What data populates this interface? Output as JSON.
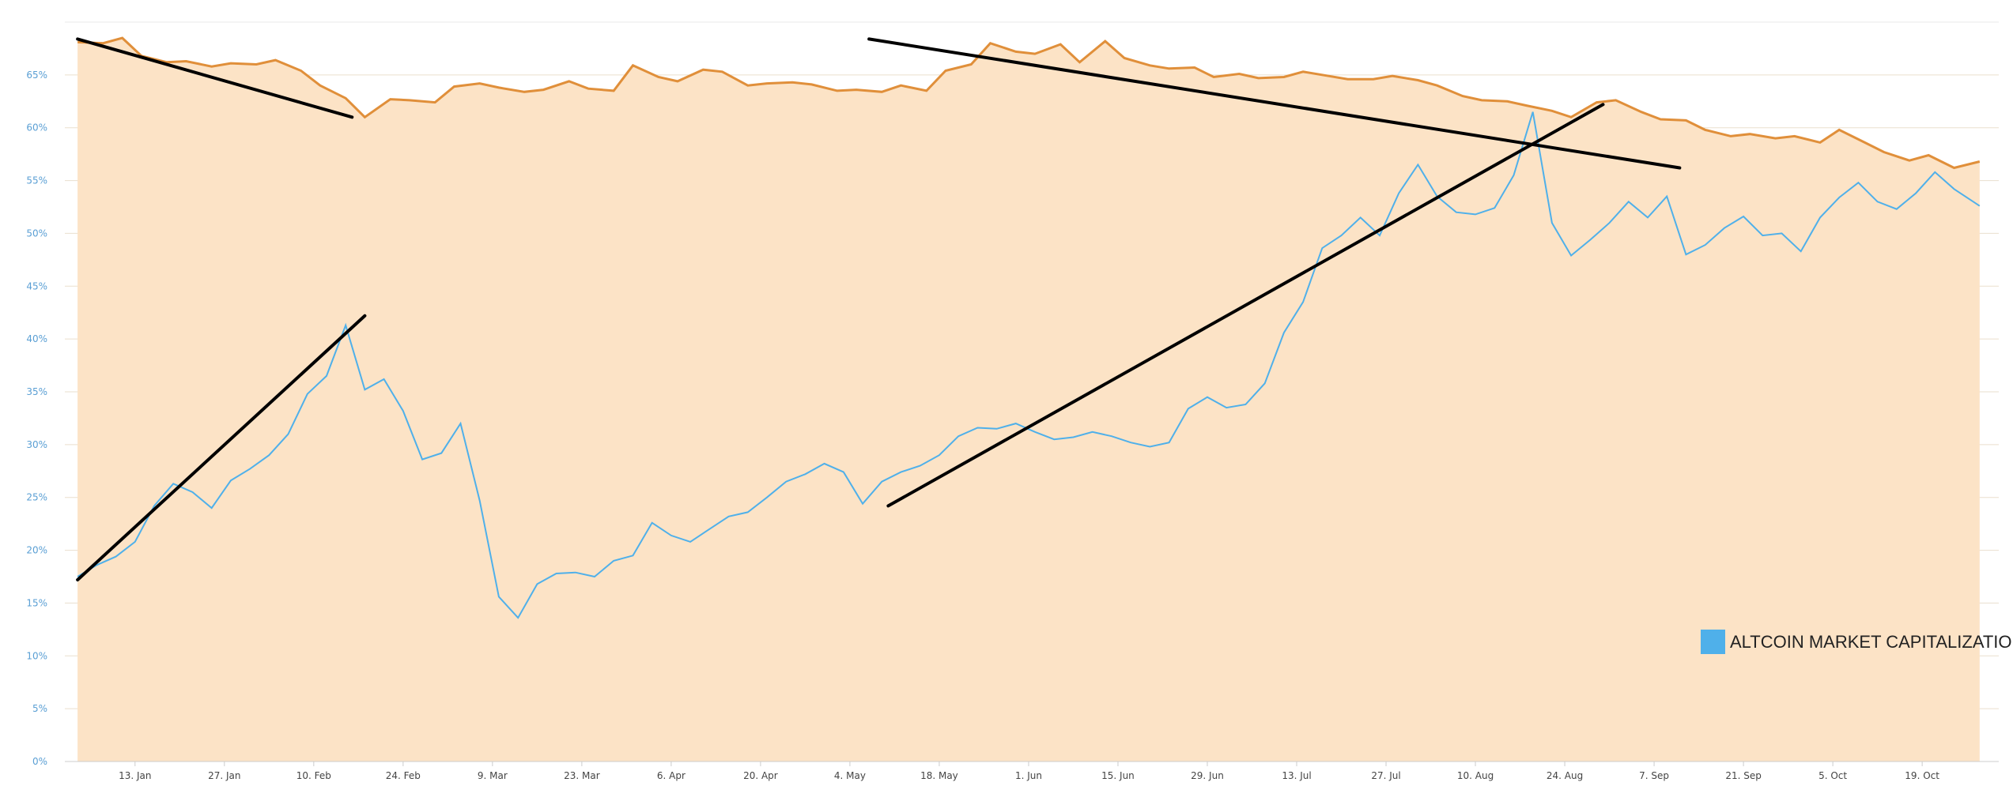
{
  "chart_data": {
    "type": "area",
    "title": "",
    "xlabel": "",
    "ylabel": "",
    "ylim": [
      0,
      70
    ],
    "grid": true,
    "legend_placement": "bottom-right",
    "y_ticks": [
      "0%",
      "5%",
      "10%",
      "15%",
      "20%",
      "25%",
      "30%",
      "35%",
      "40%",
      "45%",
      "50%",
      "55%",
      "60%",
      "65%"
    ],
    "x_ticks": [
      "13. Jan",
      "27. Jan",
      "10. Feb",
      "24. Feb",
      "9. Mar",
      "23. Mar",
      "6. Apr",
      "20. Apr",
      "4. May",
      "18. May",
      "1. Jun",
      "15. Jun",
      "29. Jun",
      "13. Jul",
      "27. Jul",
      "10. Aug",
      "24. Aug",
      "7. Sep",
      "21. Sep",
      "5. Oct",
      "19. Oct"
    ],
    "colors": {
      "area_fill": "#fce3c6",
      "area_line": "#e08f3a",
      "altcoin_line": "#4fb0ea",
      "trend_line": "#000000",
      "grid": "#eadfce",
      "legend_swatch": "#4fb0ea"
    },
    "legend": [
      {
        "label": "ALTCOIN MARKET CAPITALIZATION",
        "color": "#4fb0ea"
      }
    ],
    "series": [
      {
        "name": "",
        "type": "area",
        "x": [
          0,
          4,
          7,
          10,
          14,
          17,
          21,
          24,
          28,
          31,
          35,
          38,
          42,
          45,
          49,
          52,
          56,
          59,
          63,
          66,
          70,
          73,
          77,
          80,
          84,
          87,
          91,
          94,
          98,
          101,
          105,
          108,
          112,
          115,
          119,
          122,
          126,
          129,
          133,
          136,
          140,
          143,
          147,
          150,
          154,
          157,
          161,
          164,
          168,
          171,
          175,
          178,
          182,
          185,
          189,
          192,
          196,
          199,
          203,
          206,
          210,
          213,
          217,
          220,
          224,
          227,
          231,
          234,
          238,
          241,
          245,
          248,
          252,
          255,
          259,
          262,
          266,
          269,
          273,
          276,
          280,
          283,
          287,
          290,
          294,
          298
        ],
        "values": [
          68.1,
          68.0,
          68.5,
          66.8,
          66.2,
          66.3,
          65.8,
          66.1,
          66.0,
          66.4,
          65.4,
          64.0,
          62.8,
          61.0,
          62.7,
          62.6,
          62.4,
          63.9,
          64.2,
          63.8,
          63.4,
          63.6,
          64.4,
          63.7,
          63.5,
          65.9,
          64.8,
          64.4,
          65.5,
          65.3,
          64.0,
          64.2,
          64.3,
          64.1,
          63.5,
          63.6,
          63.4,
          64.0,
          63.5,
          65.4,
          66.0,
          68.0,
          67.2,
          67.0,
          67.9,
          66.2,
          68.2,
          66.6,
          65.9,
          65.6,
          65.7,
          64.8,
          65.1,
          64.7,
          64.8,
          65.3,
          64.9,
          64.6,
          64.6,
          64.9,
          64.5,
          64.0,
          63.0,
          62.6,
          62.5,
          62.1,
          61.6,
          61.0,
          62.4,
          62.6,
          61.5,
          60.8,
          60.7,
          59.8,
          59.2,
          59.4,
          59.0,
          59.2,
          58.6,
          59.8,
          58.6,
          57.7,
          56.9,
          57.4,
          56.2,
          56.8
        ]
      },
      {
        "name": "ALTCOIN MARKET CAPITALIZATION",
        "type": "line",
        "x": [
          0,
          3,
          6,
          9,
          12,
          15,
          18,
          21,
          24,
          27,
          30,
          33,
          36,
          39,
          42,
          45,
          48,
          51,
          54,
          57,
          60,
          63,
          66,
          69,
          72,
          75,
          78,
          81,
          84,
          87,
          90,
          93,
          96,
          99,
          102,
          105,
          108,
          111,
          114,
          117,
          120,
          123,
          126,
          129,
          132,
          135,
          138,
          141,
          144,
          147,
          150,
          153,
          156,
          159,
          162,
          165,
          168,
          171,
          174,
          177,
          180,
          183,
          186,
          189,
          192,
          195,
          198,
          201,
          204,
          207,
          210,
          213,
          216,
          219,
          222,
          225,
          228,
          231,
          234,
          237,
          240,
          243,
          246,
          249,
          252,
          255,
          258,
          261,
          264,
          267,
          270,
          273,
          276,
          279,
          282,
          285,
          288,
          291,
          294,
          297,
          298
        ],
        "values": [
          17.5,
          18.6,
          19.4,
          20.8,
          24.2,
          26.3,
          25.5,
          24.0,
          26.6,
          27.7,
          29.0,
          31.0,
          34.8,
          36.5,
          41.3,
          35.2,
          36.2,
          33.2,
          28.6,
          29.2,
          32.0,
          24.7,
          15.6,
          13.6,
          16.8,
          17.8,
          17.9,
          17.5,
          19.0,
          19.5,
          22.6,
          21.4,
          20.8,
          22.0,
          23.2,
          23.6,
          25.0,
          26.5,
          27.2,
          28.2,
          27.4,
          24.4,
          26.5,
          27.4,
          28.0,
          29.0,
          30.8,
          31.6,
          31.5,
          32.0,
          31.2,
          30.5,
          30.7,
          31.2,
          30.8,
          30.2,
          29.8,
          30.2,
          33.4,
          34.5,
          33.5,
          33.8,
          35.8,
          40.6,
          43.5,
          48.6,
          49.8,
          51.5,
          49.8,
          53.8,
          56.5,
          53.5,
          52.0,
          51.8,
          52.4,
          55.5,
          61.5,
          51.0,
          47.9,
          49.4,
          51.0,
          53.0,
          51.5,
          53.5,
          48.0,
          48.9,
          50.5,
          51.6,
          49.8,
          50.0,
          48.3,
          51.5,
          53.4,
          54.8,
          53.0,
          52.3,
          53.8,
          55.8,
          54.2,
          53.0,
          52.6
        ]
      }
    ],
    "trend_lines": [
      {
        "x": [
          0,
          43
        ],
        "values": [
          68.4,
          61.0
        ]
      },
      {
        "x": [
          0,
          45
        ],
        "values": [
          17.2,
          42.2
        ]
      },
      {
        "x": [
          124,
          251
        ],
        "values": [
          68.4,
          56.2
        ]
      },
      {
        "x": [
          127,
          239
        ],
        "values": [
          24.2,
          62.2
        ]
      }
    ],
    "x_domain": [
      -2,
      301
    ],
    "x_tick_positions": [
      9,
      23,
      37,
      51,
      65,
      79,
      93,
      107,
      121,
      135,
      149,
      163,
      177,
      191,
      205,
      219,
      233,
      247,
      261,
      275,
      289
    ]
  }
}
